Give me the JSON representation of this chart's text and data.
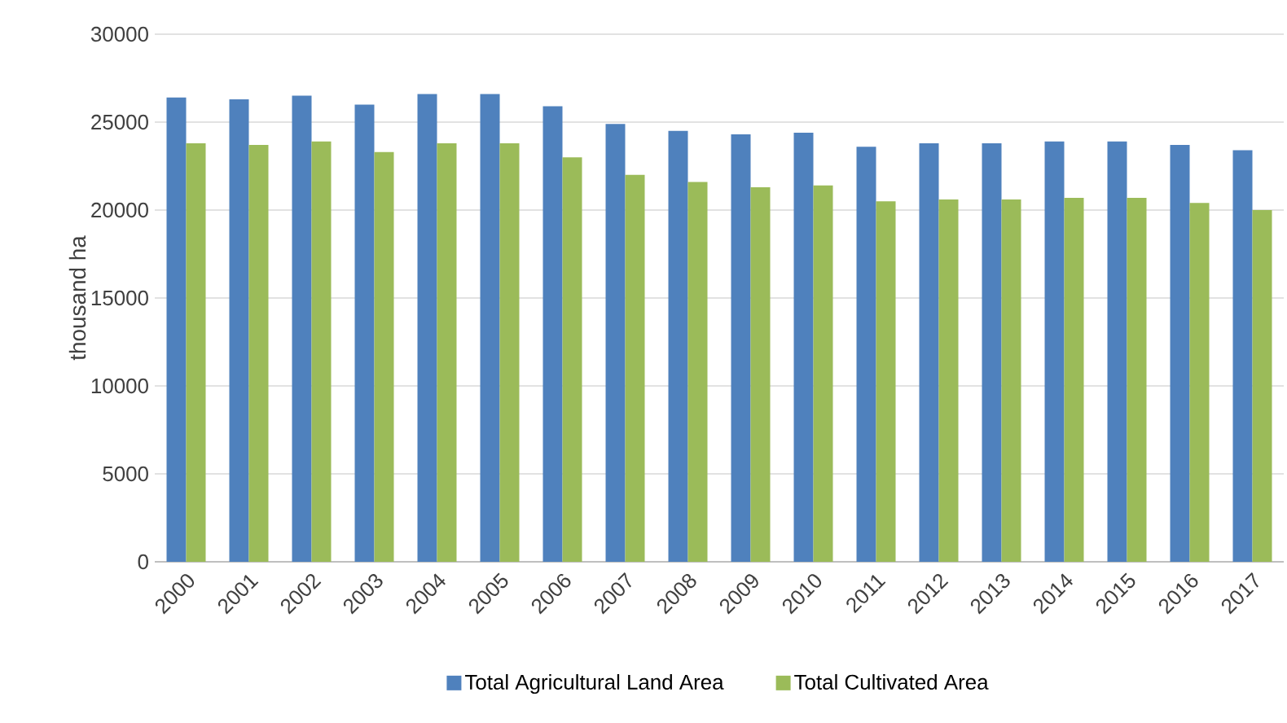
{
  "chart_data": {
    "type": "bar",
    "ylabel": "thousand ha",
    "categories": [
      "2000",
      "2001",
      "2002",
      "2003",
      "2004",
      "2005",
      "2006",
      "2007",
      "2008",
      "2009",
      "2010",
      "2011",
      "2012",
      "2013",
      "2014",
      "2015",
      "2016",
      "2017"
    ],
    "series": [
      {
        "name": "Total Agricultural Land Area",
        "color": "#4f81bd",
        "values": [
          26400,
          26300,
          26500,
          26000,
          26600,
          26600,
          25900,
          24900,
          24500,
          24300,
          24400,
          23600,
          23800,
          23800,
          23900,
          23900,
          23700,
          23400
        ]
      },
      {
        "name": "Total Cultivated Area",
        "color": "#9bbb59",
        "values": [
          23800,
          23700,
          23900,
          23300,
          23800,
          23800,
          23000,
          22000,
          21600,
          21300,
          21400,
          20500,
          20600,
          20600,
          20700,
          20700,
          20400,
          20000
        ]
      }
    ],
    "ylim": [
      0,
      30000
    ],
    "yticks": [
      0,
      5000,
      10000,
      15000,
      20000,
      25000,
      30000
    ],
    "grid": "y",
    "legend": "bottom"
  }
}
